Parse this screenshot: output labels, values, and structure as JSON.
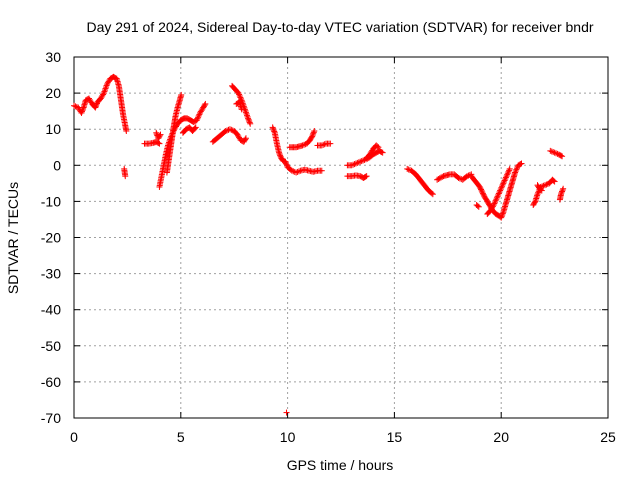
{
  "chart_data": {
    "type": "scatter",
    "title": "Day 291 of 2024, Sidereal Day-to-day VTEC variation (SDTVAR) for receiver bndr",
    "xlabel": "GPS time / hours",
    "ylabel": "SDTVAR / TECUs",
    "xlim": [
      0,
      25
    ],
    "ylim": [
      -70,
      30
    ],
    "xticks": [
      0,
      5,
      10,
      15,
      20,
      25
    ],
    "yticks": [
      30,
      20,
      10,
      0,
      -10,
      -20,
      -30,
      -40,
      -50,
      -60,
      -70
    ],
    "grid": true,
    "marker": "+",
    "marker_color": "#ff0000",
    "series": [
      {
        "name": "SDTVAR",
        "segments": [
          [
            [
              0.0,
              16.5
            ],
            [
              0.2,
              16
            ],
            [
              0.35,
              14.5
            ],
            [
              0.45,
              16
            ],
            [
              0.55,
              18
            ],
            [
              0.7,
              18.5
            ],
            [
              0.85,
              17
            ],
            [
              1.0,
              16
            ],
            [
              1.1,
              17.5
            ],
            [
              1.25,
              18.5
            ],
            [
              1.4,
              20
            ],
            [
              1.55,
              22.5
            ],
            [
              1.7,
              24
            ],
            [
              1.85,
              24.5
            ],
            [
              2.0,
              24
            ],
            [
              2.1,
              22
            ],
            [
              2.2,
              18
            ],
            [
              2.3,
              14
            ],
            [
              2.4,
              11
            ],
            [
              2.45,
              9.5
            ]
          ],
          [
            [
              2.35,
              -1
            ],
            [
              2.4,
              -3
            ]
          ],
          [
            [
              3.3,
              6
            ],
            [
              3.5,
              6
            ],
            [
              3.7,
              6.2
            ],
            [
              3.85,
              6.5
            ],
            [
              4.0,
              6
            ]
          ],
          [
            [
              3.85,
              9
            ],
            [
              3.95,
              7.5
            ],
            [
              4.05,
              8.5
            ]
          ],
          [
            [
              4.0,
              -6
            ],
            [
              4.1,
              -3
            ],
            [
              4.2,
              0
            ],
            [
              4.3,
              3
            ],
            [
              4.4,
              5.5
            ],
            [
              4.55,
              8
            ],
            [
              4.7,
              10
            ],
            [
              4.85,
              11.5
            ],
            [
              5.0,
              12.5
            ],
            [
              5.15,
              13
            ],
            [
              5.3,
              13
            ],
            [
              5.45,
              12.5
            ],
            [
              5.6,
              12
            ],
            [
              5.75,
              12.5
            ],
            [
              5.9,
              14.5
            ],
            [
              6.05,
              16
            ],
            [
              6.15,
              17
            ]
          ],
          [
            [
              4.35,
              -2
            ],
            [
              4.45,
              2
            ],
            [
              4.55,
              6
            ],
            [
              4.65,
              10
            ],
            [
              4.75,
              13.5
            ],
            [
              4.85,
              16
            ],
            [
              4.95,
              18
            ],
            [
              5.02,
              19.5
            ]
          ],
          [
            [
              5.1,
              9
            ],
            [
              5.25,
              10
            ],
            [
              5.4,
              10.5
            ],
            [
              5.55,
              9.5
            ],
            [
              5.7,
              10.5
            ]
          ],
          [
            [
              6.5,
              6.5
            ],
            [
              6.7,
              7.5
            ],
            [
              6.9,
              8.5
            ],
            [
              7.1,
              9.5
            ],
            [
              7.3,
              10
            ],
            [
              7.5,
              9.5
            ],
            [
              7.65,
              8.5
            ],
            [
              7.8,
              7
            ],
            [
              7.95,
              6.5
            ],
            [
              8.05,
              7.5
            ]
          ],
          [
            [
              7.4,
              22
            ],
            [
              7.55,
              21
            ],
            [
              7.7,
              20
            ],
            [
              7.85,
              18
            ],
            [
              8.0,
              15.5
            ],
            [
              8.15,
              13
            ],
            [
              8.25,
              11.5
            ]
          ],
          [
            [
              7.6,
              17
            ],
            [
              7.75,
              17.5
            ],
            [
              7.85,
              15.5
            ]
          ],
          [
            [
              9.3,
              10.5
            ],
            [
              9.4,
              9
            ],
            [
              9.5,
              6
            ],
            [
              9.6,
              3.5
            ],
            [
              9.7,
              2
            ],
            [
              9.8,
              1.2
            ],
            [
              9.9,
              1
            ],
            [
              10.0,
              -0.5
            ],
            [
              10.2,
              -1.5
            ],
            [
              10.4,
              -2
            ],
            [
              10.6,
              -1.5
            ],
            [
              10.8,
              -1.2
            ],
            [
              11.0,
              -1.5
            ],
            [
              11.2,
              -1.8
            ],
            [
              11.4,
              -1.5
            ],
            [
              11.6,
              -1.5
            ]
          ],
          [
            [
              10.1,
              5
            ],
            [
              10.4,
              5
            ],
            [
              10.7,
              5.5
            ],
            [
              10.9,
              6
            ],
            [
              11.05,
              7
            ],
            [
              11.15,
              8
            ],
            [
              11.25,
              9.5
            ]
          ],
          [
            [
              11.4,
              5.5
            ],
            [
              11.6,
              5.5
            ],
            [
              11.8,
              6
            ],
            [
              12.0,
              6
            ]
          ],
          [
            [
              9.95,
              -68.5
            ]
          ],
          [
            [
              12.8,
              0
            ],
            [
              13.0,
              0
            ],
            [
              13.2,
              0.5
            ],
            [
              13.4,
              1
            ],
            [
              13.6,
              1.5
            ],
            [
              13.8,
              2
            ],
            [
              14.0,
              3
            ],
            [
              14.15,
              3.5
            ],
            [
              14.3,
              4
            ],
            [
              14.45,
              3.5
            ]
          ],
          [
            [
              12.8,
              -3
            ],
            [
              13.0,
              -3
            ],
            [
              13.2,
              -2.8
            ],
            [
              13.4,
              -3
            ],
            [
              13.55,
              -3.5
            ],
            [
              13.7,
              -3
            ]
          ],
          [
            [
              13.7,
              2
            ],
            [
              13.85,
              3
            ],
            [
              14.0,
              4.5
            ],
            [
              14.15,
              5.5
            ],
            [
              14.25,
              5
            ]
          ],
          [
            [
              15.6,
              -1
            ],
            [
              15.8,
              -1.5
            ],
            [
              16.0,
              -2.5
            ],
            [
              16.2,
              -4
            ],
            [
              16.4,
              -5.5
            ],
            [
              16.6,
              -7
            ],
            [
              16.8,
              -8
            ]
          ],
          [
            [
              17.0,
              -4
            ],
            [
              17.3,
              -3
            ],
            [
              17.6,
              -2.5
            ],
            [
              17.8,
              -2.5
            ],
            [
              18.0,
              -3.5
            ],
            [
              18.2,
              -4
            ],
            [
              18.4,
              -3
            ],
            [
              18.6,
              -2.5
            ]
          ],
          [
            [
              18.6,
              -3
            ],
            [
              18.8,
              -4.5
            ],
            [
              19.0,
              -6
            ],
            [
              19.2,
              -8.5
            ],
            [
              19.4,
              -10.5
            ],
            [
              19.6,
              -12.5
            ],
            [
              19.75,
              -13.5
            ],
            [
              19.9,
              -14
            ],
            [
              20.0,
              -14.5
            ],
            [
              20.1,
              -13
            ],
            [
              20.2,
              -11
            ],
            [
              20.35,
              -8
            ],
            [
              20.5,
              -5
            ],
            [
              20.65,
              -2
            ],
            [
              20.8,
              0
            ],
            [
              20.95,
              0.5
            ]
          ],
          [
            [
              18.85,
              -11
            ],
            [
              18.95,
              -11.5
            ]
          ],
          [
            [
              19.35,
              -13.5
            ],
            [
              19.5,
              -12.5
            ],
            [
              19.65,
              -11
            ],
            [
              19.8,
              -9
            ],
            [
              19.95,
              -7
            ],
            [
              20.1,
              -5
            ],
            [
              20.25,
              -3
            ],
            [
              20.4,
              -1
            ]
          ],
          [
            [
              21.5,
              -11
            ],
            [
              21.6,
              -10
            ],
            [
              21.7,
              -8
            ],
            [
              21.85,
              -6
            ],
            [
              22.05,
              -5.5
            ],
            [
              22.25,
              -5
            ],
            [
              22.4,
              -4
            ],
            [
              22.5,
              -4.5
            ]
          ],
          [
            [
              21.7,
              -5.5
            ],
            [
              21.8,
              -6.5
            ],
            [
              21.9,
              -7
            ]
          ],
          [
            [
              22.3,
              4
            ],
            [
              22.5,
              3.5
            ],
            [
              22.7,
              3
            ],
            [
              22.85,
              2.5
            ]
          ],
          [
            [
              22.75,
              -9.5
            ],
            [
              22.8,
              -8
            ],
            [
              22.9,
              -6.5
            ]
          ]
        ]
      }
    ]
  }
}
